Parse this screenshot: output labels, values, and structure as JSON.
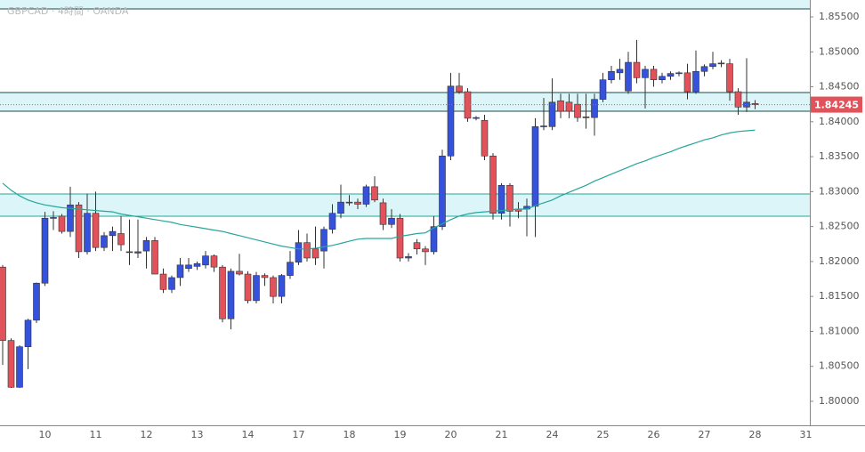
{
  "chart_data": {
    "type": "candlestick",
    "title": "GBPCAD · 4時間 · OANDA",
    "up_color": "#3452db",
    "down_color": "#e2525b",
    "ylim": [
      1.79656,
      1.85742
    ],
    "yticks": [
      {
        "value": 1.8,
        "label": "1.80000"
      },
      {
        "value": 1.805,
        "label": "1.80500"
      },
      {
        "value": 1.81,
        "label": "1.81000"
      },
      {
        "value": 1.815,
        "label": "1.81500"
      },
      {
        "value": 1.82,
        "label": "1.82000"
      },
      {
        "value": 1.825,
        "label": "1.82500"
      },
      {
        "value": 1.83,
        "label": "1.83000"
      },
      {
        "value": 1.835,
        "label": "1.83500"
      },
      {
        "value": 1.84,
        "label": "1.84000"
      },
      {
        "value": 1.845,
        "label": "1.84500"
      },
      {
        "value": 1.85,
        "label": "1.85000"
      },
      {
        "value": 1.855,
        "label": "1.85500"
      }
    ],
    "categories": [
      null,
      null,
      null,
      null,
      null,
      "10",
      null,
      null,
      null,
      null,
      null,
      "11",
      null,
      null,
      null,
      null,
      null,
      "12",
      null,
      null,
      null,
      null,
      null,
      "13",
      null,
      null,
      null,
      null,
      null,
      "14",
      null,
      null,
      null,
      null,
      null,
      "17",
      null,
      null,
      null,
      null,
      null,
      "18",
      null,
      null,
      null,
      null,
      null,
      "19",
      null,
      null,
      null,
      null,
      null,
      "20",
      null,
      null,
      null,
      null,
      null,
      "21",
      null,
      null,
      null,
      null,
      null,
      "24",
      null,
      null,
      null,
      null,
      null,
      "25",
      null,
      null,
      null,
      null,
      null,
      "26",
      null,
      null,
      null,
      null,
      null,
      "27",
      null,
      null,
      null,
      null,
      null,
      "28",
      null,
      null,
      null,
      null,
      null,
      "31"
    ],
    "open": [
      1.8192,
      1.8087,
      1.802,
      1.8078,
      1.8116,
      1.8169,
      1.8262,
      1.8265,
      1.8243,
      1.8281,
      1.8214,
      1.8269,
      1.822,
      1.8237,
      1.824,
      1.8213,
      1.8212,
      1.8215,
      1.823,
      1.8182,
      1.816,
      1.8177,
      1.819,
      1.8193,
      1.8195,
      1.8208,
      1.8192,
      1.8118,
      1.8186,
      1.8182,
      1.8144,
      1.818,
      1.8177,
      1.815,
      1.818,
      1.8199,
      1.8227,
      1.8218,
      1.8215,
      1.8246,
      1.8269,
      1.8284,
      1.8285,
      1.8282,
      1.8307,
      1.8284,
      1.8253,
      1.8262,
      1.8205,
      1.8227,
      1.8218,
      1.8214,
      1.825,
      1.8351,
      1.8451,
      1.8443,
      1.8405,
      1.8402,
      1.8351,
      1.8269,
      1.8309,
      1.8275,
      1.8275,
      1.8279,
      1.8393,
      1.8393,
      1.843,
      1.8428,
      1.8425,
      1.8406,
      1.8406,
      1.8432,
      1.846,
      1.847,
      1.8444,
      1.8485,
      1.8463,
      1.8475,
      1.846,
      1.8465,
      1.8469,
      1.847,
      1.8443,
      1.8472,
      1.8479,
      1.8483,
      1.8483,
      1.8443,
      1.8421,
      1.8426,
      null,
      null,
      null,
      null,
      null,
      null
    ],
    "high": [
      1.8195,
      1.809,
      1.808,
      1.8118,
      1.817,
      1.8271,
      1.8272,
      1.8268,
      1.8307,
      1.8285,
      1.8297,
      1.83,
      1.8242,
      1.825,
      1.8265,
      1.826,
      1.826,
      1.8235,
      1.8235,
      1.819,
      1.818,
      1.8205,
      1.8205,
      1.82,
      1.8215,
      1.821,
      1.8195,
      1.819,
      1.8211,
      1.8186,
      1.8185,
      1.8183,
      1.818,
      1.8182,
      1.8215,
      1.8245,
      1.824,
      1.825,
      1.825,
      1.8282,
      1.831,
      1.8295,
      1.829,
      1.831,
      1.8322,
      1.829,
      1.8275,
      1.8268,
      1.8212,
      1.8232,
      1.8222,
      1.8265,
      1.836,
      1.847,
      1.847,
      1.8448,
      1.8408,
      1.841,
      1.8355,
      1.8312,
      1.8312,
      1.8285,
      1.829,
      1.8405,
      1.8434,
      1.8462,
      1.844,
      1.844,
      1.844,
      1.844,
      1.844,
      1.847,
      1.848,
      1.849,
      1.85,
      1.8517,
      1.848,
      1.848,
      1.847,
      1.8472,
      1.8472,
      1.8483,
      1.8502,
      1.8482,
      1.85,
      1.8488,
      1.849,
      1.8448,
      1.8491,
      1.8431,
      null,
      null,
      null,
      null,
      null,
      null
    ],
    "low": [
      1.8052,
      1.8019,
      1.8019,
      1.8046,
      1.8112,
      1.8165,
      1.8245,
      1.824,
      1.8235,
      1.8205,
      1.821,
      1.8215,
      1.8215,
      1.8215,
      1.8215,
      1.8195,
      1.8205,
      1.819,
      1.8182,
      1.8155,
      1.8155,
      1.8165,
      1.8185,
      1.8188,
      1.819,
      1.8185,
      1.8113,
      1.8103,
      1.818,
      1.814,
      1.814,
      1.8165,
      1.814,
      1.814,
      1.8175,
      1.8195,
      1.82,
      1.8195,
      1.819,
      1.824,
      1.8262,
      1.828,
      1.8275,
      1.8278,
      1.8285,
      1.8245,
      1.8248,
      1.82,
      1.82,
      1.821,
      1.8195,
      1.821,
      1.8245,
      1.8345,
      1.844,
      1.84,
      1.8402,
      1.8345,
      1.826,
      1.826,
      1.825,
      1.8262,
      1.8236,
      1.8235,
      1.8388,
      1.8388,
      1.8405,
      1.8405,
      1.84,
      1.839,
      1.838,
      1.8428,
      1.8455,
      1.846,
      1.844,
      1.8455,
      1.8419,
      1.845,
      1.8455,
      1.846,
      1.8465,
      1.8432,
      1.844,
      1.8465,
      1.8475,
      1.8478,
      1.843,
      1.841,
      1.8414,
      1.8418,
      null,
      null,
      null,
      null,
      null,
      null
    ],
    "close": [
      1.8087,
      1.802,
      1.8078,
      1.8116,
      1.8169,
      1.8262,
      1.8263,
      1.8243,
      1.8281,
      1.8214,
      1.8269,
      1.822,
      1.8237,
      1.8243,
      1.8224,
      1.8214,
      1.8214,
      1.823,
      1.8182,
      1.816,
      1.8177,
      1.8195,
      1.8195,
      1.8197,
      1.8208,
      1.8192,
      1.8118,
      1.8186,
      1.8182,
      1.8144,
      1.818,
      1.8177,
      1.815,
      1.818,
      1.8199,
      1.8227,
      1.8205,
      1.8205,
      1.8246,
      1.8269,
      1.8285,
      1.8285,
      1.8282,
      1.8307,
      1.8288,
      1.8253,
      1.8262,
      1.8205,
      1.8207,
      1.8218,
      1.8214,
      1.825,
      1.8351,
      1.8451,
      1.8443,
      1.8405,
      1.8406,
      1.8351,
      1.8269,
      1.8309,
      1.8272,
      1.8272,
      1.8279,
      1.8393,
      1.8394,
      1.8428,
      1.8415,
      1.8415,
      1.8406,
      1.8407,
      1.8432,
      1.846,
      1.8472,
      1.8475,
      1.8485,
      1.8463,
      1.8475,
      1.846,
      1.8465,
      1.8469,
      1.847,
      1.8443,
      1.8472,
      1.8479,
      1.8483,
      1.8484,
      1.8443,
      1.8421,
      1.8428,
      1.84245,
      null,
      null,
      null,
      null,
      null,
      null
    ],
    "moving_average": {
      "color": "#26a69a",
      "values": [
        1.8312,
        1.8302,
        1.8294,
        1.8288,
        1.8284,
        1.8281,
        1.8279,
        1.8277,
        1.8276,
        1.8275,
        1.8274,
        1.8273,
        1.8272,
        1.8271,
        1.8268,
        1.8266,
        1.8264,
        1.8262,
        1.826,
        1.8258,
        1.8256,
        1.8253,
        1.8251,
        1.8249,
        1.8247,
        1.8245,
        1.8243,
        1.824,
        1.8237,
        1.8234,
        1.8231,
        1.8228,
        1.8225,
        1.8222,
        1.822,
        1.8218,
        1.8218,
        1.8219,
        1.8221,
        1.8223,
        1.8226,
        1.8229,
        1.8232,
        1.8233,
        1.8233,
        1.8233,
        1.8233,
        1.8236,
        1.8238,
        1.824,
        1.8241,
        1.8248,
        1.8254,
        1.826,
        1.8265,
        1.8268,
        1.827,
        1.8271,
        1.8272,
        1.8273,
        1.8274,
        1.8275,
        1.8275,
        1.828,
        1.8284,
        1.8288,
        1.8294,
        1.8299,
        1.8304,
        1.8309,
        1.8315,
        1.832,
        1.8325,
        1.833,
        1.8335,
        1.834,
        1.8344,
        1.8349,
        1.8353,
        1.8357,
        1.8362,
        1.8366,
        1.837,
        1.8374,
        1.8377,
        1.8381,
        1.8384,
        1.8386,
        1.8387,
        1.8388,
        null,
        null,
        null,
        null,
        null,
        null
      ]
    },
    "zones": [
      {
        "range": [
          1.85615,
          1.85742
        ],
        "color": "#dcf5f8",
        "border": "#1b4b4b"
      },
      {
        "range": [
          1.84151,
          1.84418
        ],
        "color": "#dcf5f8",
        "border": "#1b4b4b"
      },
      {
        "range": [
          1.82648,
          1.82967
        ],
        "color": "#dcf5f8",
        "border": "#26a69a"
      }
    ],
    "price_label": {
      "value": 1.84245,
      "label": "1.84245",
      "color": "#e2525b"
    }
  }
}
